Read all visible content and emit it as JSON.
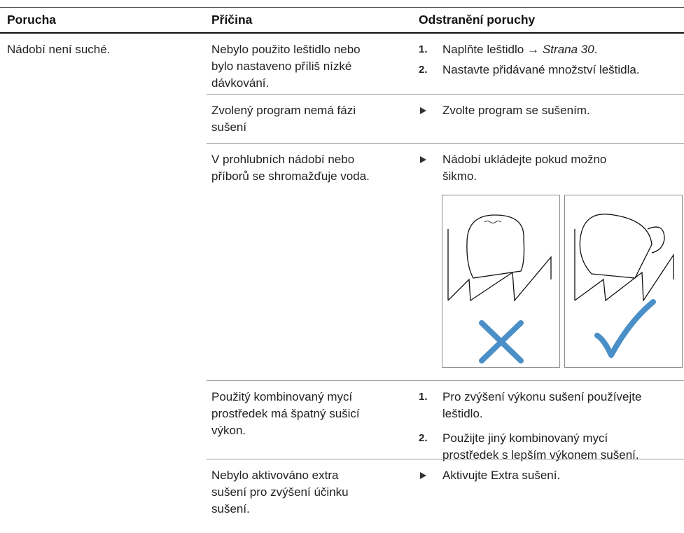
{
  "table": {
    "headers": [
      "Porucha",
      "Příčina",
      "Odstranění poruchy"
    ],
    "rows": [
      {
        "fault": [
          "Nádobí není suché."
        ],
        "cause": [
          "Nebylo použito leštidlo nebo",
          "bylo nastaveno příliš nízké",
          "dávkování."
        ],
        "steps": [
          {
            "number": "1.",
            "text": [
              "Naplňte leštidlo →"
            ],
            "link": "Strana 30",
            "after": "."
          },
          {
            "number": "2.",
            "text": [
              "Nastavte přidávané množství leštidla."
            ]
          }
        ]
      },
      {
        "cause": [
          "Zvolený program nemá fázi",
          "sušení"
        ],
        "steps": [
          {
            "text": [
              "Zvolte program se sušením."
            ]
          }
        ]
      },
      {
        "cause": [
          "V prohlubních nádobí nebo",
          "příborů se shromažďuje voda."
        ],
        "steps": [
          {
            "text": [
              "Nádobí ukládejte pokud možno",
              "šikmo."
            ]
          }
        ]
      },
      {
        "cause": [
          "Použitý kombinovaný mycí",
          "prostředek má špatný sušicí",
          "výkon."
        ],
        "steps": [
          {
            "number": "1.",
            "text": [
              "Pro zvýšení výkonu sušení používejte",
              "leštidlo."
            ]
          },
          {
            "number": "2.",
            "text": [
              "Použijte jiný kombinovaný mycí",
              "prostředek s lepším výkonem sušení."
            ]
          }
        ]
      },
      {
        "cause": [
          "Nebylo aktivováno extra",
          "sušení pro zvýšení účinku",
          "sušení."
        ],
        "steps": [
          {
            "text": [
              "Aktivujte Extra sušení."
            ]
          }
        ]
      }
    ]
  }
}
